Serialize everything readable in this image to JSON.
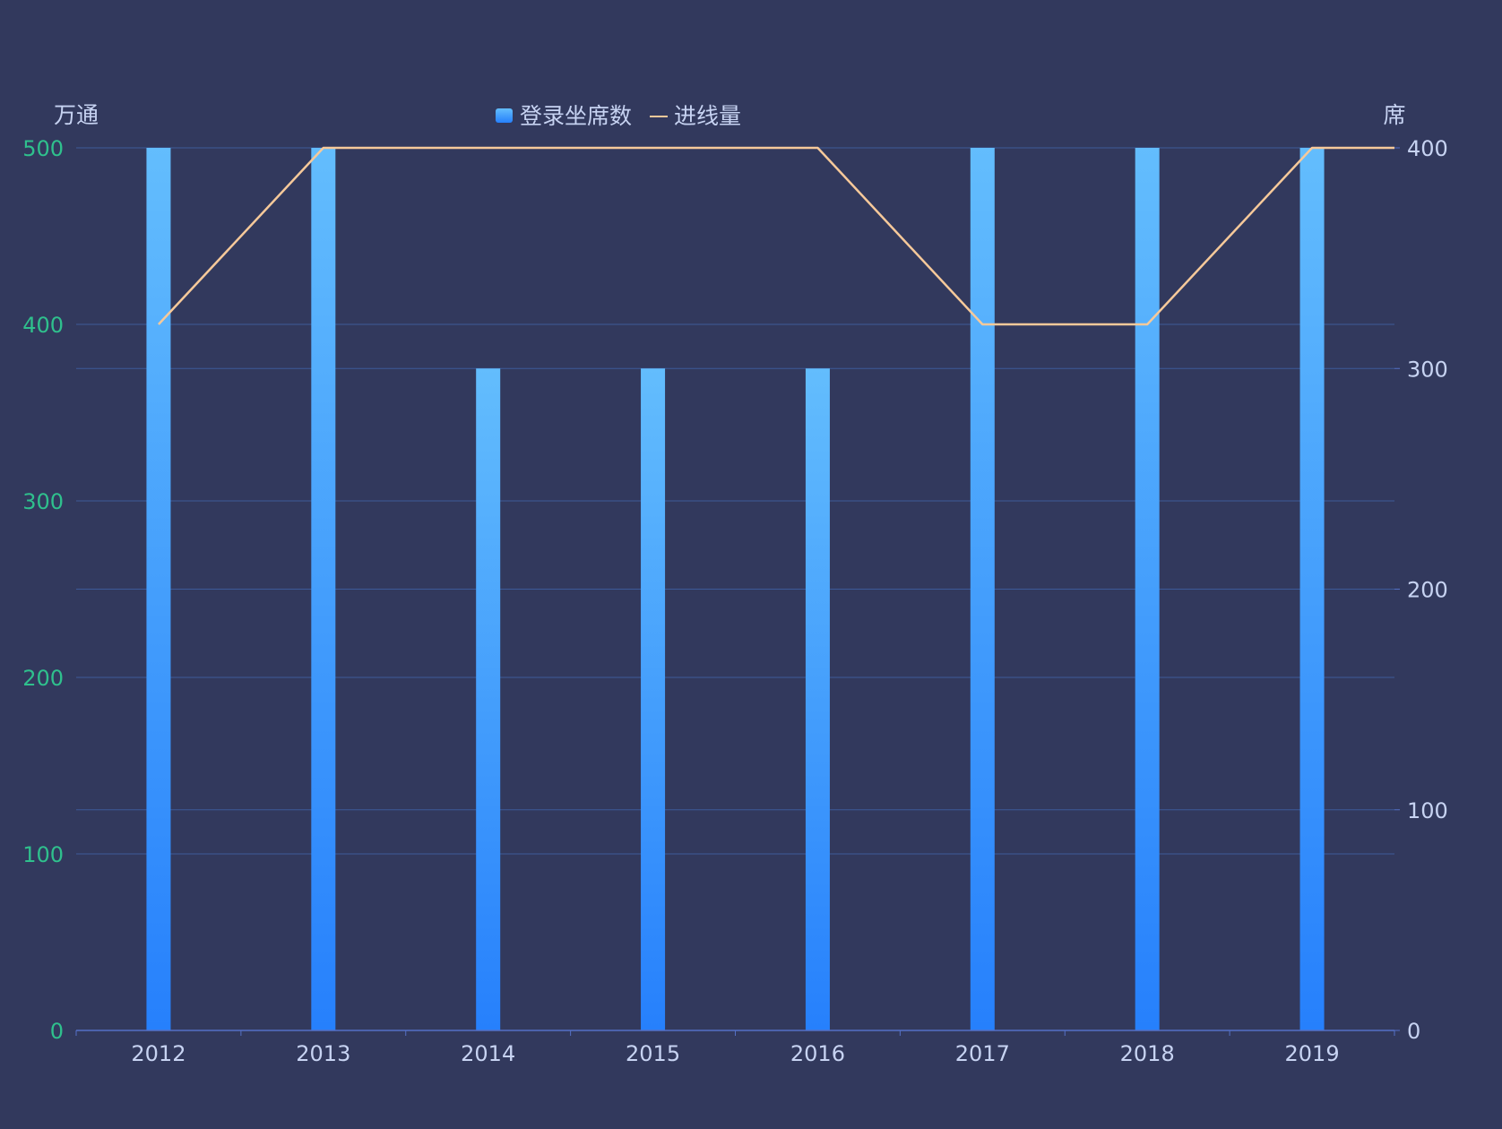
{
  "chart_data": {
    "type": "bar",
    "categories": [
      "2012",
      "2013",
      "2014",
      "2015",
      "2016",
      "2017",
      "2018",
      "2019"
    ],
    "series": [
      {
        "name": "登录坐席数",
        "type": "bar",
        "axis": "left",
        "values": [
          500,
          500,
          375,
          375,
          375,
          500,
          500,
          500
        ],
        "color_top": "#63bdfd",
        "color_bottom": "#2680fc"
      },
      {
        "name": "进线量",
        "type": "line",
        "axis": "right",
        "values": [
          320,
          400,
          400,
          400,
          400,
          320,
          320,
          400
        ],
        "color": "#f6c99a"
      }
    ],
    "y_left": {
      "unit": "万通",
      "ylim": [
        0,
        500
      ],
      "ticks": [
        0,
        100,
        200,
        300,
        400,
        500
      ],
      "tick_color": "#2fc08d"
    },
    "y_right": {
      "unit": "席",
      "ylim": [
        0,
        400
      ],
      "ticks": [
        0,
        100,
        200,
        300,
        400
      ],
      "tick_color": "#c7d3f2"
    },
    "legend_position": "top-center",
    "grid": true,
    "grid_color": "#3d5a99",
    "axis_color": "#5470c6",
    "background": "#32395d"
  }
}
